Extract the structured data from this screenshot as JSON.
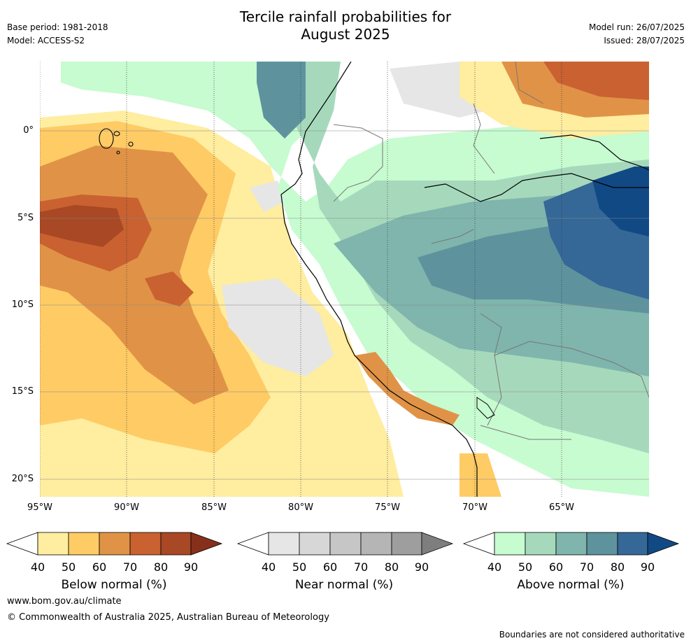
{
  "header": {
    "title_line1": "Tercile rainfall probabilities for",
    "title_line2": "August 2025",
    "base_period": "Base period: 1981-2018",
    "model": "Model: ACCESS-S2",
    "model_run": "Model run: 26/07/2025",
    "issued": "Issued: 28/07/2025"
  },
  "axes": {
    "lat_labels": [
      "0°",
      "5°S",
      "10°S",
      "15°S",
      "20°S"
    ],
    "lon_labels": [
      "95°W",
      "90°W",
      "85°W",
      "80°W",
      "75°W",
      "70°W",
      "65°W"
    ],
    "lon_range": [
      -95,
      -60
    ],
    "lat_range": [
      -21,
      4
    ]
  },
  "legends": [
    {
      "name": "Below normal (%)",
      "ticks": [
        "40",
        "50",
        "60",
        "70",
        "80",
        "90"
      ],
      "colors": [
        "#ffeda0",
        "#fecb65",
        "#e09346",
        "#c96131",
        "#a84824",
        "#86301b"
      ]
    },
    {
      "name": "Near normal (%)",
      "ticks": [
        "40",
        "50",
        "60",
        "70",
        "80",
        "90"
      ],
      "colors": [
        "#e6e6e6",
        "#d7d7d7",
        "#c6c6c6",
        "#b5b5b5",
        "#9e9e9e",
        "#7e7e7e"
      ]
    },
    {
      "name": "Above normal (%)",
      "ticks": [
        "40",
        "50",
        "60",
        "70",
        "80",
        "90"
      ],
      "colors": [
        "#c7fbd0",
        "#a6d9bc",
        "#7fb5ac",
        "#5e939e",
        "#356897",
        "#114985"
      ]
    }
  ],
  "footer": {
    "website": "www.bom.gov.au/climate",
    "copyright": "© Commonwealth of Australia 2025, Australian Bureau of Meteorology",
    "disclaimer": "Boundaries are not considered authoritative"
  }
}
